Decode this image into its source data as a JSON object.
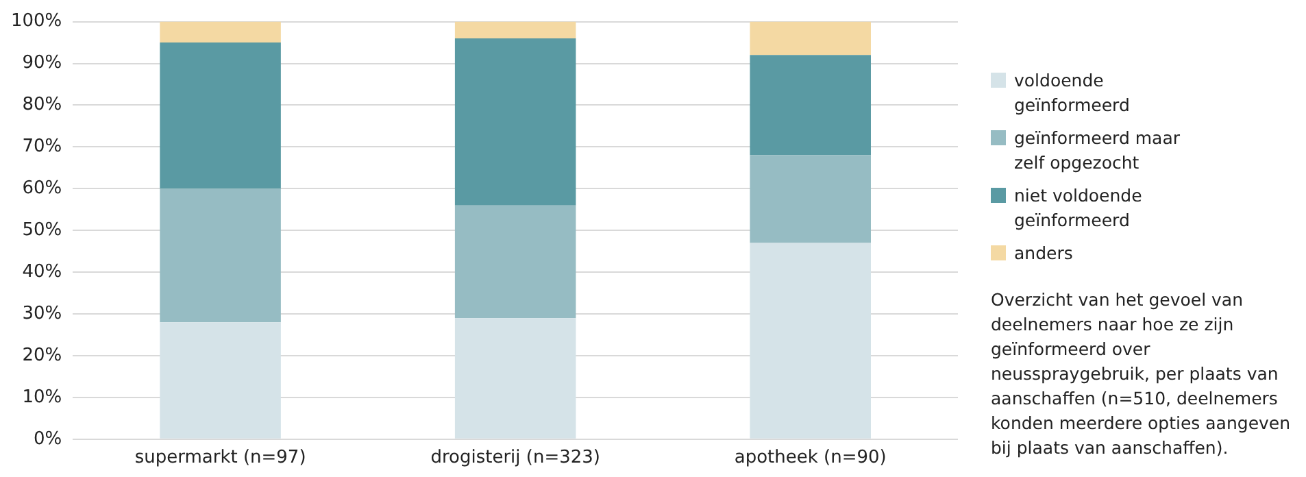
{
  "chart_data": {
    "type": "bar",
    "stacked": true,
    "categories": [
      "supermarkt (n=97)",
      "drogisterij (n=323)",
      "apotheek (n=90)"
    ],
    "series": [
      {
        "name": "voldoende geïnformeerd",
        "color": "#d5e3e8",
        "values": [
          28,
          29,
          47
        ]
      },
      {
        "name": "geïnformeerd maar zelf opgezocht",
        "color": "#96bcc3",
        "values": [
          32,
          27,
          21
        ]
      },
      {
        "name": "niet voldoende geïnformeerd",
        "color": "#5a9aa3",
        "values": [
          35,
          40,
          24
        ]
      },
      {
        "name": "anders",
        "color": "#f4d9a3",
        "values": [
          5,
          4,
          8
        ]
      }
    ],
    "ylim": [
      0,
      100
    ],
    "yticks": [
      {
        "value": 0,
        "label": "0%"
      },
      {
        "value": 10,
        "label": "10%"
      },
      {
        "value": 20,
        "label": "20%"
      },
      {
        "value": 30,
        "label": "30%"
      },
      {
        "value": 40,
        "label": "40%"
      },
      {
        "value": 50,
        "label": "50%"
      },
      {
        "value": 60,
        "label": "60%"
      },
      {
        "value": 70,
        "label": "70%"
      },
      {
        "value": 80,
        "label": "80%"
      },
      {
        "value": 90,
        "label": "90%"
      },
      {
        "value": 100,
        "label": "100%"
      }
    ],
    "grid": "y",
    "legend": "right",
    "annotations": [
      "Overzicht van het gevoel van deelnemers naar hoe ze zijn geïnformeerd over neusspraygebruik, per plaats van aanschaffen (n=510, deelnemers konden meerdere opties aangeven bij plaats van aanschaffen)."
    ]
  }
}
